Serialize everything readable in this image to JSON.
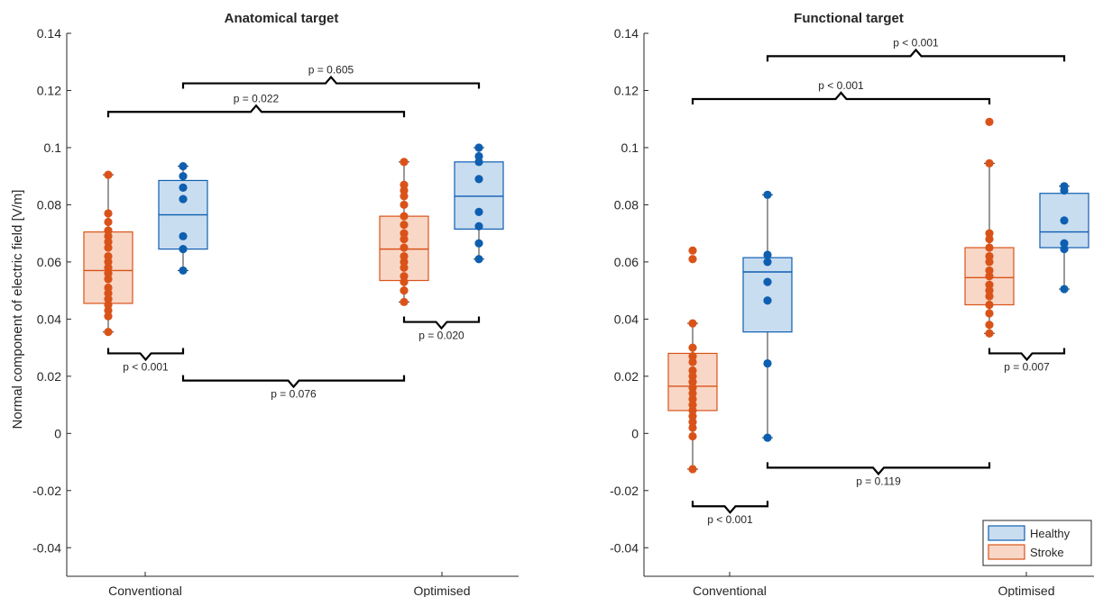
{
  "colors": {
    "healthy": "#0E5FB0",
    "healthy_fill": "#C9DDF0",
    "stroke": "#D95319",
    "stroke_fill": "#F8D7C7",
    "axis": "#262626",
    "whisker": "#333333",
    "bracket": "#000000"
  },
  "chart_data": [
    {
      "type": "box",
      "title": "Anatomical target",
      "ylabel": "Normal component of electric field [V/m]",
      "ylim": [
        -0.05,
        0.14
      ],
      "yticks": [
        -0.04,
        -0.02,
        0,
        0.02,
        0.04,
        0.06,
        0.08,
        0.1,
        0.12,
        0.14
      ],
      "ytick_labels": [
        "-0.04",
        "-0.02",
        "0",
        "0.02",
        "0.04",
        "0.06",
        "0.08",
        "0.1",
        "0.12",
        "0.14"
      ],
      "categories": [
        "Conventional",
        "Optimised"
      ],
      "boxes": [
        {
          "group": "Conventional",
          "series": "Stroke",
          "min": 0.0355,
          "q1": 0.0455,
          "median": 0.057,
          "q3": 0.0705,
          "max": 0.0905,
          "points": [
            0.0355,
            0.041,
            0.043,
            0.045,
            0.047,
            0.049,
            0.051,
            0.054,
            0.056,
            0.058,
            0.06,
            0.062,
            0.065,
            0.067,
            0.069,
            0.071,
            0.074,
            0.077,
            0.0905
          ]
        },
        {
          "group": "Conventional",
          "series": "Healthy",
          "min": 0.057,
          "q1": 0.0645,
          "median": 0.0765,
          "q3": 0.0885,
          "max": 0.0935,
          "points": [
            0.057,
            0.0645,
            0.069,
            0.082,
            0.086,
            0.09,
            0.0935
          ]
        },
        {
          "group": "Optimised",
          "series": "Stroke",
          "min": 0.046,
          "q1": 0.0535,
          "median": 0.0645,
          "q3": 0.076,
          "max": 0.095,
          "points": [
            0.046,
            0.05,
            0.053,
            0.055,
            0.058,
            0.06,
            0.062,
            0.065,
            0.068,
            0.07,
            0.073,
            0.076,
            0.08,
            0.083,
            0.085,
            0.087,
            0.095
          ]
        },
        {
          "group": "Optimised",
          "series": "Healthy",
          "min": 0.061,
          "q1": 0.0715,
          "median": 0.083,
          "q3": 0.095,
          "max": 0.1,
          "points": [
            0.061,
            0.0665,
            0.0725,
            0.0775,
            0.089,
            0.095,
            0.097,
            0.1
          ]
        }
      ],
      "comparisons": [
        {
          "label": "p = 0.605",
          "y": 0.1225,
          "from": "Conventional Healthy",
          "to": "Optimised Healthy",
          "dir": "up"
        },
        {
          "label": "p = 0.022",
          "y": 0.1125,
          "from": "Conventional Stroke",
          "to": "Optimised Stroke",
          "dir": "up"
        },
        {
          "label": "p = 0.020",
          "y": 0.039,
          "from": "Optimised Stroke",
          "to": "Optimised Healthy",
          "dir": "down"
        },
        {
          "label": "p < 0.001",
          "y": 0.028,
          "from": "Conventional Stroke",
          "to": "Conventional Healthy",
          "dir": "down"
        },
        {
          "label": "p = 0.076",
          "y": 0.0185,
          "from": "Conventional Healthy",
          "to": "Optimised Stroke",
          "dir": "down"
        }
      ]
    },
    {
      "type": "box",
      "title": "Functional target",
      "ylim": [
        -0.05,
        0.14
      ],
      "yticks": [
        -0.04,
        -0.02,
        0,
        0.02,
        0.04,
        0.06,
        0.08,
        0.1,
        0.12,
        0.14
      ],
      "ytick_labels": [
        "-0.04",
        "-0.02",
        "0",
        "0.02",
        "0.04",
        "0.06",
        "0.08",
        "0.1",
        "0.12",
        "0.14"
      ],
      "categories": [
        "Conventional",
        "Optimised"
      ],
      "boxes": [
        {
          "group": "Conventional",
          "series": "Stroke",
          "min": -0.0125,
          "q1": 0.008,
          "median": 0.0165,
          "q3": 0.028,
          "max": 0.0385,
          "points": [
            -0.0125,
            -0.001,
            0.002,
            0.004,
            0.006,
            0.008,
            0.01,
            0.012,
            0.014,
            0.016,
            0.018,
            0.02,
            0.022,
            0.025,
            0.027,
            0.03,
            0.0385,
            0.061,
            0.064
          ]
        },
        {
          "group": "Conventional",
          "series": "Healthy",
          "min": -0.0015,
          "q1": 0.0355,
          "median": 0.0565,
          "q3": 0.0615,
          "max": 0.0835,
          "points": [
            -0.0015,
            0.0245,
            0.0465,
            0.053,
            0.06,
            0.0625,
            0.0835
          ]
        },
        {
          "group": "Optimised",
          "series": "Stroke",
          "min": 0.035,
          "q1": 0.045,
          "median": 0.0545,
          "q3": 0.065,
          "max": 0.0945,
          "points": [
            0.035,
            0.038,
            0.042,
            0.045,
            0.048,
            0.05,
            0.052,
            0.055,
            0.057,
            0.06,
            0.062,
            0.065,
            0.068,
            0.07,
            0.0945,
            0.109
          ]
        },
        {
          "group": "Optimised",
          "series": "Healthy",
          "min": 0.0505,
          "q1": 0.065,
          "median": 0.0705,
          "q3": 0.084,
          "max": 0.0865,
          "points": [
            0.0505,
            0.0645,
            0.0665,
            0.0745,
            0.085,
            0.0865
          ]
        }
      ],
      "comparisons": [
        {
          "label": "p < 0.001",
          "y": 0.132,
          "from": "Conventional Healthy",
          "to": "Optimised Healthy",
          "dir": "up"
        },
        {
          "label": "p < 0.001",
          "y": 0.117,
          "from": "Conventional Stroke",
          "to": "Optimised Stroke",
          "dir": "up"
        },
        {
          "label": "p = 0.007",
          "y": 0.028,
          "from": "Optimised Stroke",
          "to": "Optimised Healthy",
          "dir": "down"
        },
        {
          "label": "p = 0.119",
          "y": -0.012,
          "from": "Conventional Healthy",
          "to": "Optimised Stroke",
          "dir": "down"
        },
        {
          "label": "p < 0.001",
          "y": -0.0255,
          "from": "Conventional Stroke",
          "to": "Conventional Healthy",
          "dir": "down"
        }
      ],
      "legend": {
        "position": "bottom-right",
        "entries": [
          "Healthy",
          "Stroke"
        ]
      }
    }
  ]
}
